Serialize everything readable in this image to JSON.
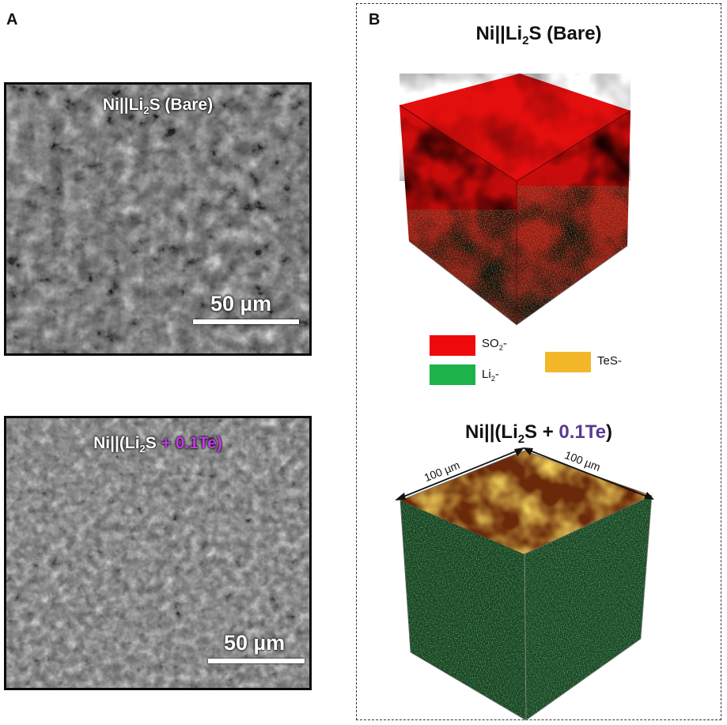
{
  "panel_a": {
    "letter": "A",
    "top_image": {
      "title_prefix": "Ni||Li",
      "title_sub": "2",
      "title_suffix": "S (Bare)",
      "scale": "50 µm"
    },
    "bottom_image": {
      "title_prefix": "Ni||(Li",
      "title_sub": "2",
      "title_mid": "S ",
      "title_te": "+ 0.1Te)",
      "scale": "50 µm"
    }
  },
  "panel_b": {
    "letter": "B",
    "top_title": {
      "prefix": "Ni||Li",
      "sub": "2",
      "suffix": "S (Bare)"
    },
    "bottom_title": {
      "prefix": "Ni||(Li",
      "sub": "2",
      "mid": "S + ",
      "te": "0.1Te",
      "end": ")"
    },
    "legend": [
      {
        "label": "SO",
        "sub": "2",
        "suffix": "-",
        "color": "#ee0a0a"
      },
      {
        "label": "Li",
        "sub": "2",
        "suffix": "-",
        "color": "#1db34a"
      },
      {
        "label": "TeS-",
        "sub": "",
        "suffix": "",
        "color": "#f2b82a"
      }
    ],
    "dimension_left": "100 µm",
    "dimension_right": "100 µm"
  },
  "colors": {
    "te_highlight_a": "#c339e6",
    "te_highlight_b": "#5b3a8e"
  }
}
